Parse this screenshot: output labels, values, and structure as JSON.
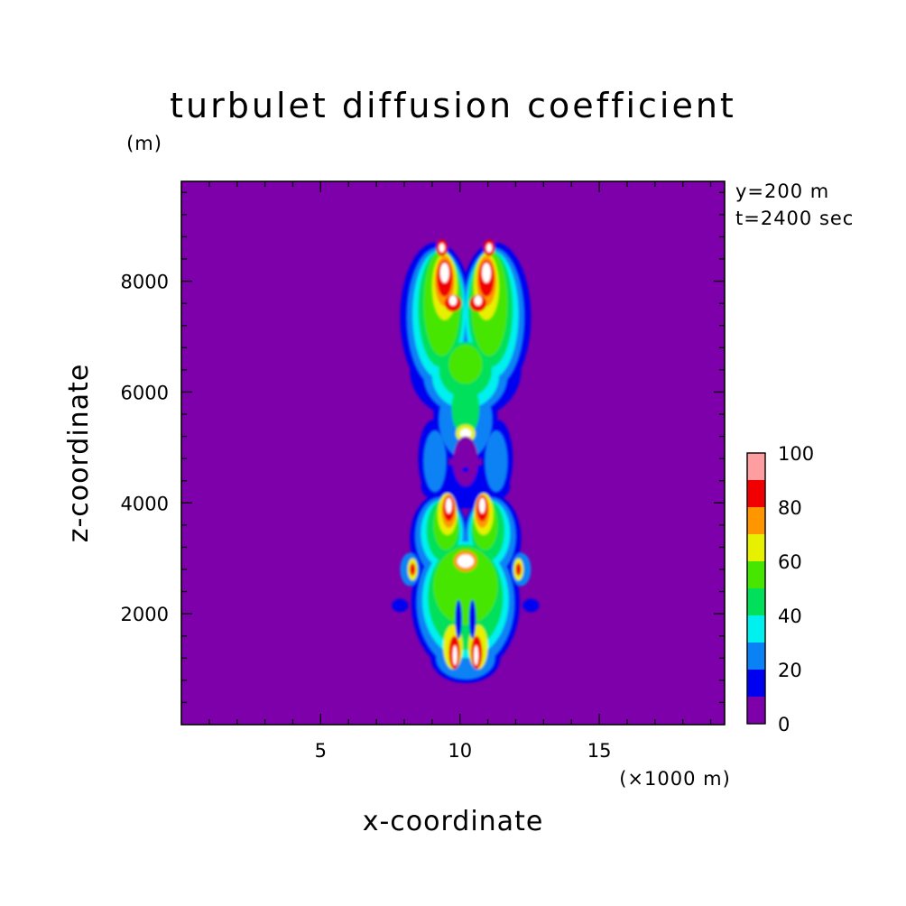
{
  "chart_data": {
    "type": "heatmap",
    "title": "turbulet diffusion coefficient",
    "xlabel": "x-coordinate",
    "ylabel": "z-coordinate",
    "x_unit": "(×1000 m)",
    "y_unit": "(m)",
    "annotations": [
      "y=200 m",
      "t=2400 sec"
    ],
    "xlim": [
      0,
      19.5
    ],
    "ylim": [
      0,
      9800
    ],
    "x_ticks": [
      5,
      10,
      15
    ],
    "y_ticks": [
      2000,
      4000,
      6000,
      8000
    ],
    "x_tick_labels": [
      "5",
      "10",
      "15"
    ],
    "y_tick_labels": [
      "2000",
      "4000",
      "6000",
      "8000"
    ],
    "colorbar": {
      "levels": [
        0,
        10,
        20,
        30,
        40,
        50,
        60,
        70,
        80,
        90,
        100
      ],
      "tick_labels": [
        "0",
        "20",
        "40",
        "60",
        "80",
        "100"
      ],
      "tick_values": [
        0,
        20,
        40,
        60,
        80,
        100
      ],
      "colors": [
        "#7d00aa",
        "#0000f0",
        "#0a82f5",
        "#00f0f0",
        "#00e05a",
        "#46e600",
        "#e6f000",
        "#ff9600",
        "#f00000",
        "#ff9ea0"
      ]
    },
    "background_color": "#7d00aa",
    "grid": false
  }
}
